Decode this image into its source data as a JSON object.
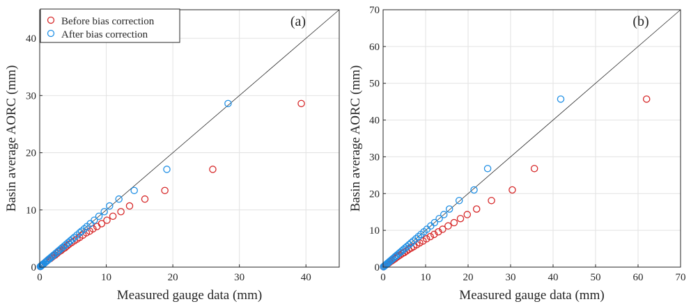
{
  "colors": {
    "before": "#d62728",
    "after": "#1f8fe5"
  },
  "chart_data": [
    {
      "type": "scatter",
      "panel_label": "(a)",
      "xlabel": "Measured gauge data (mm)",
      "ylabel": "Basin average AORC (mm)",
      "xlim": [
        0,
        45
      ],
      "ylim": [
        0,
        45
      ],
      "xticks": [
        0,
        10,
        20,
        30,
        40
      ],
      "yticks": [
        0,
        10,
        20,
        30,
        40
      ],
      "grid": true,
      "reference_line": "1:1",
      "legend": {
        "position": "top-left",
        "entries": [
          "Before bias correction",
          "After bias correction"
        ]
      },
      "series": [
        {
          "name": "Before bias correction",
          "marker": "open-circle",
          "color": "#d62728",
          "x": [
            0.1,
            0.2,
            0.3,
            0.4,
            0.5,
            0.6,
            0.8,
            1.0,
            1.2,
            1.4,
            1.6,
            1.8,
            2.0,
            2.3,
            2.6,
            2.9,
            3.2,
            3.5,
            3.8,
            4.1,
            4.4,
            4.8,
            5.2,
            5.6,
            6.0,
            6.5,
            7.0,
            7.5,
            8.0,
            8.6,
            9.3,
            10.1,
            11.0,
            12.2,
            13.5,
            15.8,
            18.8,
            26.0,
            39.3
          ],
          "y": [
            0.1,
            0.2,
            0.3,
            0.4,
            0.5,
            0.6,
            0.8,
            1.0,
            1.2,
            1.4,
            1.5,
            1.7,
            1.9,
            2.1,
            2.4,
            2.7,
            2.9,
            3.2,
            3.4,
            3.7,
            4.0,
            4.3,
            4.6,
            4.9,
            5.2,
            5.6,
            6.0,
            6.3,
            6.7,
            7.1,
            7.6,
            8.2,
            8.9,
            9.7,
            10.7,
            11.9,
            13.4,
            17.1,
            28.6
          ]
        },
        {
          "name": "After bias correction",
          "marker": "open-circle",
          "color": "#1f8fe5",
          "x": [
            0.1,
            0.2,
            0.3,
            0.4,
            0.5,
            0.6,
            0.8,
            1.0,
            1.2,
            1.4,
            1.5,
            1.7,
            1.9,
            2.1,
            2.4,
            2.7,
            2.9,
            3.2,
            3.4,
            3.7,
            4.0,
            4.3,
            4.6,
            4.9,
            5.2,
            5.6,
            6.0,
            6.3,
            6.7,
            7.1,
            7.6,
            8.2,
            8.9,
            9.7,
            10.5,
            11.9,
            14.2,
            19.1,
            28.3
          ],
          "y": [
            0.1,
            0.2,
            0.3,
            0.4,
            0.5,
            0.6,
            0.8,
            1.0,
            1.2,
            1.4,
            1.5,
            1.7,
            1.9,
            2.1,
            2.4,
            2.7,
            2.9,
            3.2,
            3.4,
            3.7,
            4.0,
            4.3,
            4.6,
            4.9,
            5.2,
            5.6,
            6.0,
            6.3,
            6.7,
            7.1,
            7.6,
            8.2,
            8.9,
            9.7,
            10.7,
            11.9,
            13.4,
            17.1,
            28.6
          ]
        }
      ]
    },
    {
      "type": "scatter",
      "panel_label": "(b)",
      "xlabel": "Measured gauge data (mm)",
      "ylabel": "Basin average AORC (mm)",
      "xlim": [
        0,
        70
      ],
      "ylim": [
        0,
        70
      ],
      "xticks": [
        0,
        10,
        20,
        30,
        40,
        50,
        60,
        70
      ],
      "yticks": [
        0,
        10,
        20,
        30,
        40,
        50,
        60,
        70
      ],
      "grid": true,
      "reference_line": "1:1",
      "series": [
        {
          "name": "Before bias correction",
          "marker": "open-circle",
          "color": "#d62728",
          "x": [
            0.1,
            0.3,
            0.5,
            0.8,
            1.0,
            1.3,
            1.6,
            2.0,
            2.4,
            2.8,
            3.2,
            3.6,
            4.0,
            4.5,
            5.0,
            5.5,
            6.0,
            6.6,
            7.2,
            7.9,
            8.6,
            9.4,
            10.2,
            11.1,
            12.0,
            13.0,
            14.0,
            15.3,
            16.7,
            18.2,
            19.8,
            22.0,
            25.5,
            30.4,
            35.6,
            62.0
          ],
          "y": [
            0.1,
            0.3,
            0.5,
            0.7,
            0.9,
            1.1,
            1.4,
            1.7,
            2.0,
            2.3,
            2.7,
            3.0,
            3.3,
            3.7,
            4.0,
            4.4,
            4.8,
            5.2,
            5.6,
            6.1,
            6.6,
            7.1,
            7.7,
            8.3,
            8.9,
            9.6,
            10.3,
            11.2,
            12.1,
            13.2,
            14.3,
            15.8,
            18.1,
            21.0,
            26.8,
            45.7
          ]
        },
        {
          "name": "After bias correction",
          "marker": "open-circle",
          "color": "#1f8fe5",
          "x": [
            0.1,
            0.3,
            0.5,
            0.7,
            0.9,
            1.1,
            1.4,
            1.7,
            2.0,
            2.3,
            2.7,
            3.0,
            3.3,
            3.7,
            4.0,
            4.4,
            4.8,
            5.2,
            5.6,
            6.1,
            6.6,
            7.1,
            7.7,
            8.3,
            8.9,
            9.6,
            10.3,
            11.2,
            12.1,
            13.2,
            14.3,
            15.6,
            17.9,
            21.4,
            24.6,
            41.8
          ],
          "y": [
            0.1,
            0.3,
            0.5,
            0.7,
            0.9,
            1.1,
            1.4,
            1.7,
            2.0,
            2.3,
            2.7,
            3.0,
            3.3,
            3.7,
            4.0,
            4.4,
            4.8,
            5.2,
            5.6,
            6.1,
            6.6,
            7.1,
            7.7,
            8.3,
            8.9,
            9.6,
            10.3,
            11.2,
            12.1,
            13.2,
            14.3,
            15.8,
            18.1,
            21.0,
            26.8,
            45.7
          ]
        }
      ]
    }
  ]
}
